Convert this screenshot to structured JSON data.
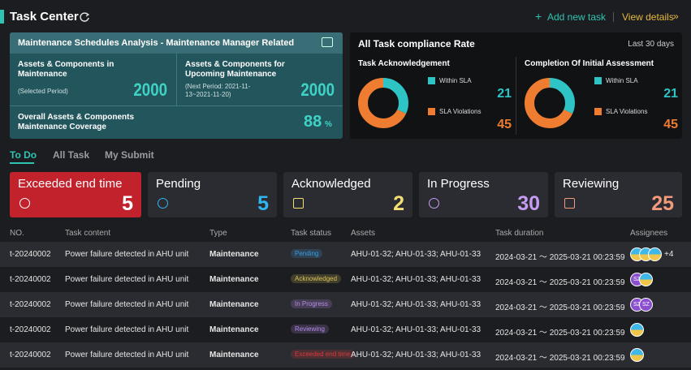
{
  "header": {
    "title": "Task Center",
    "add_new": "Add new task",
    "view_details": "View details"
  },
  "maintenance": {
    "title": "Maintenance Schedules Analysis - Maintenance Manager Related",
    "in_maintenance": {
      "label": "Assets & Components in Maintenance",
      "note": "(Selected Period)",
      "value": 2000
    },
    "upcoming": {
      "label": "Assets & Components for Upcoming Maintenance",
      "note": "(Next Period: 2021-11-13~2021-11-20)",
      "value": 2000
    },
    "coverage": {
      "label": "Overall Assets  & Components Maintenance Coverage",
      "value": 88,
      "unit": "%"
    }
  },
  "compliance": {
    "title": "All Task compliance Rate",
    "period": "Last 30 days",
    "within_color": "#2ec4c6",
    "violation_color": "#ef7d31",
    "charts": [
      {
        "title": "Task Acknowledgement",
        "within_label": "Within SLA",
        "within": 21,
        "violations_label": "SLA Violations",
        "violations": 45
      },
      {
        "title": "Completion Of Initial Assessment",
        "within_label": "Within SLA",
        "within": 21,
        "violations_label": "SLA Violations",
        "violations": 45
      }
    ]
  },
  "tabs": {
    "items": [
      "To Do",
      "All Task",
      "My Submit"
    ],
    "active": 0
  },
  "status_cards": [
    {
      "label": "Exceeded end time",
      "count": 5,
      "color": "#ffffff",
      "background": "#c1222c"
    },
    {
      "label": "Pending",
      "count": 5,
      "color": "#2fb5f0",
      "background": "#2b2c31"
    },
    {
      "label": "Acknowledged",
      "count": 2,
      "color": "#f3df73",
      "background": "#2b2c31"
    },
    {
      "label": "In Progress",
      "count": 30,
      "color": "#c59cf3",
      "background": "#2b2c31"
    },
    {
      "label": "Reviewing",
      "count": 25,
      "color": "#f19a7c",
      "background": "#2b2c31"
    }
  ],
  "table": {
    "columns": [
      "NO.",
      "Task content",
      "Type",
      "Task status",
      "Assets",
      "Task duration",
      "Assignees"
    ],
    "rows": [
      {
        "no": "t-20240002",
        "content": "Power failure detected in AHU unit",
        "type": "Maintenance",
        "status": {
          "text": "Pending",
          "color": "#3b9ae0"
        },
        "assets": "AHU-01-32; AHU-01-33; AHU-01-33",
        "duration": "2024-03-21 ～ 2025-03-21 00:23:59",
        "assignees": {
          "initials": [],
          "photos": 3,
          "more": "+4"
        }
      },
      {
        "no": "t-20240002",
        "content": "Power failure detected in AHU unit",
        "type": "Maintenance",
        "status": {
          "text": "Acknowledged",
          "color": "#d9c25a"
        },
        "assets": "AHU-01-32; AHU-01-33; AHU-01-33",
        "duration": "2024-03-21 ～ 2025-03-21 00:23:59",
        "assignees": {
          "initials": [
            "SZ"
          ],
          "photos": 1
        }
      },
      {
        "no": "t-20240002",
        "content": "Power failure detected in AHU unit",
        "type": "Maintenance",
        "status": {
          "text": "In Progress",
          "color": "#b58ae8"
        },
        "assets": "AHU-01-32; AHU-01-33; AHU-01-33",
        "duration": "2024-03-21 ～ 2025-03-21 00:23:59",
        "assignees": {
          "initials": [
            "SZ",
            "SZ"
          ],
          "photos": 0
        }
      },
      {
        "no": "t-20240002",
        "content": "Power failure detected in AHU unit",
        "type": "Maintenance",
        "status": {
          "text": "Reviewing",
          "color": "#b58ae8"
        },
        "assets": "AHU-01-32; AHU-01-33; AHU-01-33",
        "duration": "2024-03-21 ～ 2025-03-21 00:23:59",
        "assignees": {
          "initials": [],
          "photos": 1
        }
      },
      {
        "no": "t-20240002",
        "content": "Power failure detected in AHU unit",
        "type": "Maintenance",
        "status": {
          "text": "Exceeded end time",
          "color": "#d83a3a"
        },
        "assets": "AHU-01-32; AHU-01-33; AHU-01-33",
        "duration": "2024-03-21 ～ 2025-03-21 00:23:59",
        "assignees": {
          "initials": [],
          "photos": 1
        }
      }
    ]
  }
}
